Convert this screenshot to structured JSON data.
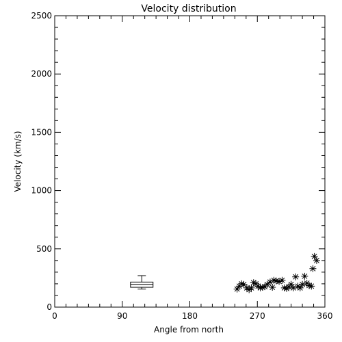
{
  "chart_data": {
    "type": "scatter",
    "title": "Velocity distribution",
    "xlabel": "Angle from north",
    "ylabel": "Velocity (km/s)",
    "xlim": [
      0,
      360
    ],
    "ylim": [
      0,
      2500
    ],
    "xticks": [
      0,
      90,
      180,
      270,
      360
    ],
    "yticks": [
      0,
      500,
      1000,
      1500,
      2000,
      2500
    ],
    "xtick_labels": [
      "0",
      "90",
      "180",
      "270",
      "360"
    ],
    "ytick_labels": [
      "0",
      "500",
      "1000",
      "1500",
      "2000",
      "2500"
    ],
    "grid": false,
    "box": {
      "x_center": 116,
      "x_halfwidth": 15,
      "min": 155,
      "q1": 170,
      "median": 195,
      "q3": 215,
      "max": 270
    },
    "points": [
      {
        "x": 243,
        "y": 155
      },
      {
        "x": 246,
        "y": 180
      },
      {
        "x": 249,
        "y": 200
      },
      {
        "x": 252,
        "y": 195
      },
      {
        "x": 256,
        "y": 165
      },
      {
        "x": 259,
        "y": 150
      },
      {
        "x": 262,
        "y": 165
      },
      {
        "x": 265,
        "y": 210
      },
      {
        "x": 268,
        "y": 200
      },
      {
        "x": 271,
        "y": 180
      },
      {
        "x": 274,
        "y": 165
      },
      {
        "x": 277,
        "y": 170
      },
      {
        "x": 280,
        "y": 175
      },
      {
        "x": 283,
        "y": 195
      },
      {
        "x": 287,
        "y": 215
      },
      {
        "x": 290,
        "y": 170
      },
      {
        "x": 292,
        "y": 230
      },
      {
        "x": 295,
        "y": 225
      },
      {
        "x": 299,
        "y": 220
      },
      {
        "x": 303,
        "y": 230
      },
      {
        "x": 306,
        "y": 165
      },
      {
        "x": 309,
        "y": 160
      },
      {
        "x": 312,
        "y": 175
      },
      {
        "x": 315,
        "y": 195
      },
      {
        "x": 318,
        "y": 165
      },
      {
        "x": 321,
        "y": 260
      },
      {
        "x": 324,
        "y": 180
      },
      {
        "x": 327,
        "y": 165
      },
      {
        "x": 330,
        "y": 195
      },
      {
        "x": 333,
        "y": 265
      },
      {
        "x": 336,
        "y": 205
      },
      {
        "x": 339,
        "y": 185
      },
      {
        "x": 342,
        "y": 180
      },
      {
        "x": 344,
        "y": 330
      },
      {
        "x": 346,
        "y": 435
      },
      {
        "x": 349,
        "y": 400
      }
    ]
  }
}
